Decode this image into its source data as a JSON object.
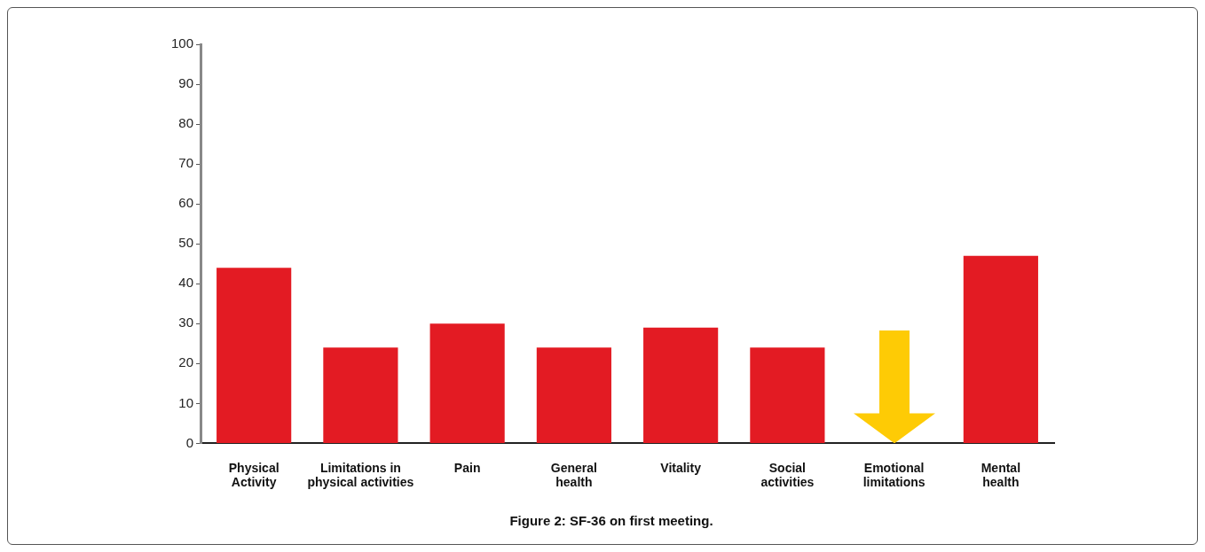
{
  "chart_data": {
    "type": "bar",
    "title": "Figure 2: SF-36 on first meeting.",
    "categories": [
      "Physical Activity",
      "Limitations in physical activities",
      "Pain",
      "General health",
      "Vitality",
      "Social activities",
      "Emotional limitations",
      "Mental health"
    ],
    "values": [
      44,
      24,
      30,
      24,
      29,
      24,
      null,
      47
    ],
    "color": "#e31b23",
    "ylim": [
      0,
      100
    ],
    "yticks": [
      0,
      10,
      20,
      30,
      40,
      50,
      60,
      70,
      80,
      90,
      100
    ],
    "grid": false,
    "legend": false
  }
}
